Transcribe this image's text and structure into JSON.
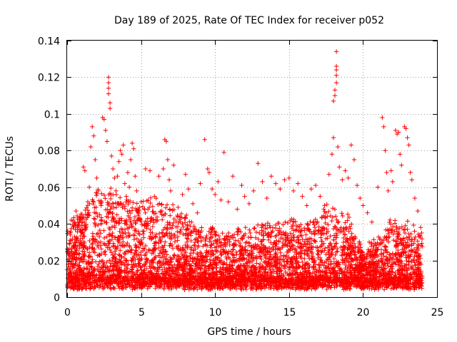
{
  "chart_data": {
    "type": "scatter",
    "title": "Day 189 of 2025, Rate Of TEC Index for receiver p052",
    "xlabel": "GPS time / hours",
    "ylabel": "ROTI / TECUs",
    "xlim": [
      0,
      25
    ],
    "ylim": [
      0,
      0.14
    ],
    "xticks": [
      0,
      5,
      10,
      15,
      20,
      25
    ],
    "xtick_labels": [
      "0",
      "5",
      "10",
      "15",
      "20",
      "25"
    ],
    "yticks": [
      0,
      0.02,
      0.04,
      0.06,
      0.08,
      0.1,
      0.12,
      0.14
    ],
    "ytick_labels": [
      "0",
      "0.02",
      "0.04",
      "0.06",
      "0.08",
      "0.1",
      "0.12",
      "0.14"
    ],
    "grid": true,
    "marker": "+",
    "color": "#ff0000",
    "series": [
      {
        "name": "ROTI",
        "points": [
          [
            0.1,
            0.012
          ],
          [
            0.3,
            0.018
          ],
          [
            0.5,
            0.022
          ],
          [
            0.2,
            0.035
          ],
          [
            0.6,
            0.047
          ],
          [
            0.7,
            0.039
          ],
          [
            0.8,
            0.03
          ],
          [
            0.9,
            0.016
          ],
          [
            1.1,
            0.071
          ],
          [
            1.2,
            0.069
          ],
          [
            1.4,
            0.052
          ],
          [
            1.5,
            0.06
          ],
          [
            1.6,
            0.082
          ],
          [
            1.7,
            0.093
          ],
          [
            1.8,
            0.088
          ],
          [
            1.9,
            0.075
          ],
          [
            2.0,
            0.065
          ],
          [
            2.1,
            0.058
          ],
          [
            2.2,
            0.045
          ],
          [
            2.3,
            0.05
          ],
          [
            2.4,
            0.098
          ],
          [
            2.5,
            0.097
          ],
          [
            2.6,
            0.091
          ],
          [
            2.7,
            0.085
          ],
          [
            2.8,
            0.12
          ],
          [
            2.8,
            0.117
          ],
          [
            2.8,
            0.114
          ],
          [
            2.8,
            0.111
          ],
          [
            2.9,
            0.106
          ],
          [
            2.9,
            0.103
          ],
          [
            3.0,
            0.077
          ],
          [
            3.1,
            0.07
          ],
          [
            3.2,
            0.065
          ],
          [
            3.3,
            0.058
          ],
          [
            3.4,
            0.066
          ],
          [
            3.5,
            0.074
          ],
          [
            3.6,
            0.08
          ],
          [
            3.7,
            0.078
          ],
          [
            3.8,
            0.083
          ],
          [
            3.9,
            0.062
          ],
          [
            4.0,
            0.055
          ],
          [
            4.1,
            0.068
          ],
          [
            4.2,
            0.06
          ],
          [
            4.3,
            0.075
          ],
          [
            4.4,
            0.084
          ],
          [
            4.5,
            0.081
          ],
          [
            4.6,
            0.066
          ],
          [
            4.7,
            0.058
          ],
          [
            4.8,
            0.048
          ],
          [
            5.0,
            0.052
          ],
          [
            5.3,
            0.07
          ],
          [
            5.6,
            0.069
          ],
          [
            5.9,
            0.055
          ],
          [
            6.2,
            0.066
          ],
          [
            6.5,
            0.07
          ],
          [
            6.6,
            0.086
          ],
          [
            6.7,
            0.085
          ],
          [
            6.8,
            0.075
          ],
          [
            6.9,
            0.064
          ],
          [
            7.0,
            0.058
          ],
          [
            7.2,
            0.072
          ],
          [
            7.5,
            0.049
          ],
          [
            7.8,
            0.056
          ],
          [
            8.0,
            0.067
          ],
          [
            8.2,
            0.059
          ],
          [
            8.5,
            0.051
          ],
          [
            8.8,
            0.046
          ],
          [
            9.0,
            0.062
          ],
          [
            9.3,
            0.086
          ],
          [
            9.5,
            0.07
          ],
          [
            9.6,
            0.068
          ],
          [
            9.8,
            0.059
          ],
          [
            10.0,
            0.056
          ],
          [
            10.2,
            0.063
          ],
          [
            10.4,
            0.053
          ],
          [
            10.6,
            0.079
          ],
          [
            10.9,
            0.052
          ],
          [
            11.2,
            0.066
          ],
          [
            11.5,
            0.048
          ],
          [
            11.8,
            0.061
          ],
          [
            12.0,
            0.055
          ],
          [
            12.3,
            0.051
          ],
          [
            12.6,
            0.058
          ],
          [
            12.9,
            0.073
          ],
          [
            13.2,
            0.063
          ],
          [
            13.5,
            0.054
          ],
          [
            13.8,
            0.066
          ],
          [
            14.1,
            0.062
          ],
          [
            14.4,
            0.059
          ],
          [
            14.7,
            0.064
          ],
          [
            15.0,
            0.065
          ],
          [
            15.3,
            0.058
          ],
          [
            15.6,
            0.062
          ],
          [
            15.9,
            0.055
          ],
          [
            16.2,
            0.05
          ],
          [
            16.5,
            0.059
          ],
          [
            16.8,
            0.061
          ],
          [
            17.1,
            0.055
          ],
          [
            17.4,
            0.05
          ],
          [
            17.7,
            0.067
          ],
          [
            17.9,
            0.078
          ],
          [
            18.0,
            0.087
          ],
          [
            18.0,
            0.107
          ],
          [
            18.1,
            0.11
          ],
          [
            18.1,
            0.113
          ],
          [
            18.2,
            0.117
          ],
          [
            18.2,
            0.121
          ],
          [
            18.2,
            0.124
          ],
          [
            18.2,
            0.126
          ],
          [
            18.2,
            0.134
          ],
          [
            18.3,
            0.082
          ],
          [
            18.4,
            0.071
          ],
          [
            18.6,
            0.064
          ],
          [
            18.8,
            0.069
          ],
          [
            19.0,
            0.065
          ],
          [
            19.2,
            0.083
          ],
          [
            19.4,
            0.075
          ],
          [
            19.6,
            0.061
          ],
          [
            19.8,
            0.054
          ],
          [
            20.0,
            0.05
          ],
          [
            20.3,
            0.046
          ],
          [
            20.6,
            0.041
          ],
          [
            21.0,
            0.06
          ],
          [
            21.3,
            0.098
          ],
          [
            21.4,
            0.093
          ],
          [
            21.5,
            0.08
          ],
          [
            21.6,
            0.068
          ],
          [
            21.7,
            0.058
          ],
          [
            21.9,
            0.069
          ],
          [
            22.0,
            0.063
          ],
          [
            22.2,
            0.091
          ],
          [
            22.3,
            0.089
          ],
          [
            22.4,
            0.09
          ],
          [
            22.5,
            0.078
          ],
          [
            22.6,
            0.072
          ],
          [
            22.8,
            0.093
          ],
          [
            22.9,
            0.092
          ],
          [
            23.0,
            0.087
          ],
          [
            23.1,
            0.083
          ],
          [
            23.2,
            0.068
          ],
          [
            23.3,
            0.064
          ],
          [
            23.5,
            0.054
          ],
          [
            23.7,
            0.047
          ],
          [
            23.9,
            0.038
          ]
        ]
      }
    ],
    "dense_band": {
      "note": "dense cloud of low ROTI values across the full day",
      "profile_hours": [
        0,
        1,
        2,
        3,
        4,
        5,
        6,
        7,
        8,
        9,
        10,
        11,
        12,
        13,
        14,
        15,
        16,
        17,
        18,
        19,
        20,
        21,
        22,
        23,
        24
      ],
      "profile_max": [
        0.035,
        0.045,
        0.055,
        0.055,
        0.05,
        0.048,
        0.05,
        0.046,
        0.04,
        0.036,
        0.034,
        0.032,
        0.033,
        0.036,
        0.038,
        0.04,
        0.038,
        0.042,
        0.048,
        0.042,
        0.02,
        0.03,
        0.04,
        0.036,
        0.03
      ],
      "base_min": 0.004,
      "count": 5200
    }
  }
}
